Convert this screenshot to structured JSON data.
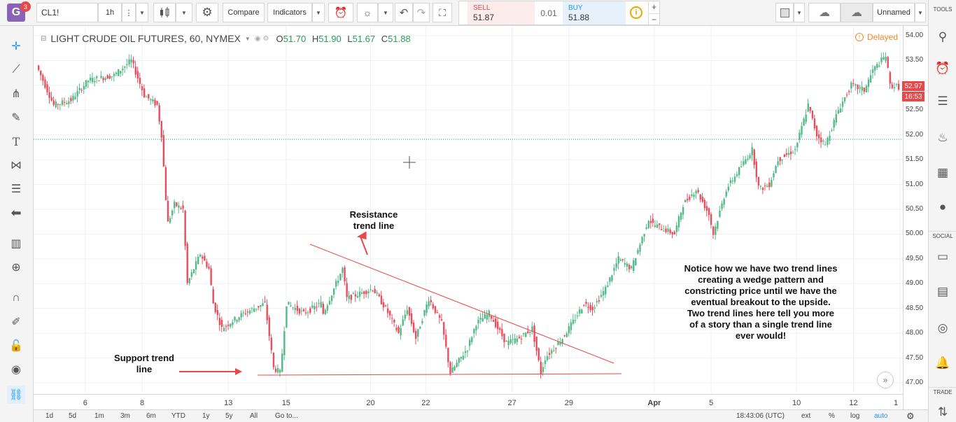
{
  "app": {
    "logo_letter": "G",
    "notification_count": "3"
  },
  "toolbar": {
    "symbol": "CL1!",
    "interval": "1h",
    "compare_label": "Compare",
    "indicators_label": "Indicators",
    "layout_name": "Unnamed"
  },
  "trade": {
    "sell_label": "SELL",
    "sell_price": "51.87",
    "spread": "0.01",
    "buy_label": "BUY",
    "buy_price": "51.88"
  },
  "legend": {
    "title": "LIGHT CRUDE OIL FUTURES, 60, NYMEX",
    "open_key": "O",
    "open": "51.70",
    "high_key": "H",
    "high": "51.90",
    "low_key": "L",
    "low": "51.67",
    "close_key": "C",
    "close": "51.88",
    "delayed_label": "Delayed"
  },
  "price_tags": {
    "last": "52.97",
    "countdown": "16:53"
  },
  "sidebar": {
    "tools_label": "TOOLS",
    "social_label": "SOCIAL",
    "trade_label": "TRADE"
  },
  "annotations": {
    "resistance_line1": "Resistance",
    "resistance_line2": "trend line",
    "support_line1": "Support trend",
    "support_line2": "line",
    "note_lines": [
      "Notice how we have two trend lines",
      "creating a wedge pattern and",
      "constricting price until we have the",
      "eventual breakout to the upside.",
      "Two trend lines here tell you more",
      "of a story than a single trend line",
      "ever would!"
    ]
  },
  "bottom_bar": {
    "ranges": [
      "1d",
      "5d",
      "1m",
      "3m",
      "6m",
      "YTD",
      "1y",
      "5y",
      "All"
    ],
    "goto_label": "Go to...",
    "clock": "18:43:06 (UTC)",
    "ext_label": "ext",
    "percent_label": "%",
    "log_label": "log",
    "auto_label": "auto"
  },
  "colors": {
    "up": "#53b987",
    "down": "#eb4d5c",
    "trend": "#e9484a",
    "accent": "#2196f3",
    "logo": "#8a62b6"
  },
  "chart_data": {
    "type": "candlestick",
    "title": "LIGHT CRUDE OIL FUTURES, 60, NYMEX",
    "ylim": [
      46.6,
      54.2
    ],
    "y_ticks": [
      "54.00",
      "53.50",
      "53.00",
      "52.50",
      "52.00",
      "51.50",
      "51.00",
      "50.50",
      "50.00",
      "49.50",
      "49.00",
      "48.50",
      "48.00",
      "47.50",
      "47.00"
    ],
    "x_ticks": [
      {
        "label": "6",
        "t": 0.055
      },
      {
        "label": "8",
        "t": 0.121
      },
      {
        "label": "13",
        "t": 0.221
      },
      {
        "label": "15",
        "t": 0.288
      },
      {
        "label": "20",
        "t": 0.386
      },
      {
        "label": "22",
        "t": 0.45
      },
      {
        "label": "27",
        "t": 0.55
      },
      {
        "label": "29",
        "t": 0.616
      },
      {
        "label": "Apr",
        "t": 0.715
      },
      {
        "label": "5",
        "t": 781
      },
      {
        "label": "10",
        "t": 0.88
      },
      {
        "label": "12",
        "t": 0.946
      },
      {
        "label": "1",
        "t": 1.0
      }
    ],
    "price_path": [
      [
        0.0,
        53.4
      ],
      [
        0.02,
        52.6
      ],
      [
        0.04,
        52.7
      ],
      [
        0.06,
        53.1
      ],
      [
        0.09,
        53.2
      ],
      [
        0.11,
        53.5
      ],
      [
        0.125,
        52.8
      ],
      [
        0.14,
        52.6
      ],
      [
        0.145,
        52.0
      ],
      [
        0.152,
        50.2
      ],
      [
        0.16,
        50.6
      ],
      [
        0.17,
        50.5
      ],
      [
        0.175,
        49.0
      ],
      [
        0.19,
        49.6
      ],
      [
        0.2,
        49.3
      ],
      [
        0.205,
        48.6
      ],
      [
        0.215,
        48.1
      ],
      [
        0.24,
        48.4
      ],
      [
        0.265,
        48.6
      ],
      [
        0.275,
        47.3
      ],
      [
        0.283,
        47.2
      ],
      [
        0.29,
        48.6
      ],
      [
        0.31,
        48.4
      ],
      [
        0.33,
        48.6
      ],
      [
        0.33,
        48.3
      ],
      [
        0.355,
        49.3
      ],
      [
        0.36,
        48.7
      ],
      [
        0.39,
        48.9
      ],
      [
        0.405,
        48.5
      ],
      [
        0.42,
        48.0
      ],
      [
        0.43,
        48.5
      ],
      [
        0.44,
        47.9
      ],
      [
        0.455,
        48.7
      ],
      [
        0.47,
        48.2
      ],
      [
        0.48,
        47.2
      ],
      [
        0.5,
        47.7
      ],
      [
        0.51,
        48.2
      ],
      [
        0.525,
        48.4
      ],
      [
        0.545,
        47.8
      ],
      [
        0.56,
        47.9
      ],
      [
        0.575,
        48.1
      ],
      [
        0.585,
        47.2
      ],
      [
        0.59,
        47.5
      ],
      [
        0.61,
        47.9
      ],
      [
        0.625,
        48.3
      ],
      [
        0.635,
        48.6
      ],
      [
        0.645,
        48.5
      ],
      [
        0.66,
        48.9
      ],
      [
        0.67,
        49.3
      ],
      [
        0.675,
        49.5
      ],
      [
        0.69,
        49.3
      ],
      [
        0.7,
        49.8
      ],
      [
        0.71,
        50.3
      ],
      [
        0.715,
        50.2
      ],
      [
        0.74,
        50.0
      ],
      [
        0.75,
        50.6
      ],
      [
        0.765,
        50.9
      ],
      [
        0.78,
        50.4
      ],
      [
        0.785,
        50.0
      ],
      [
        0.8,
        50.9
      ],
      [
        0.815,
        51.3
      ],
      [
        0.83,
        51.7
      ],
      [
        0.838,
        50.9
      ],
      [
        0.85,
        51.0
      ],
      [
        0.86,
        51.5
      ],
      [
        0.88,
        51.7
      ],
      [
        0.895,
        52.6
      ],
      [
        0.905,
        52.0
      ],
      [
        0.915,
        51.8
      ],
      [
        0.93,
        52.5
      ],
      [
        0.945,
        53.0
      ],
      [
        0.96,
        52.9
      ],
      [
        0.97,
        53.3
      ],
      [
        0.985,
        53.6
      ],
      [
        0.99,
        53.0
      ],
      [
        1.0,
        52.97
      ]
    ]
  }
}
